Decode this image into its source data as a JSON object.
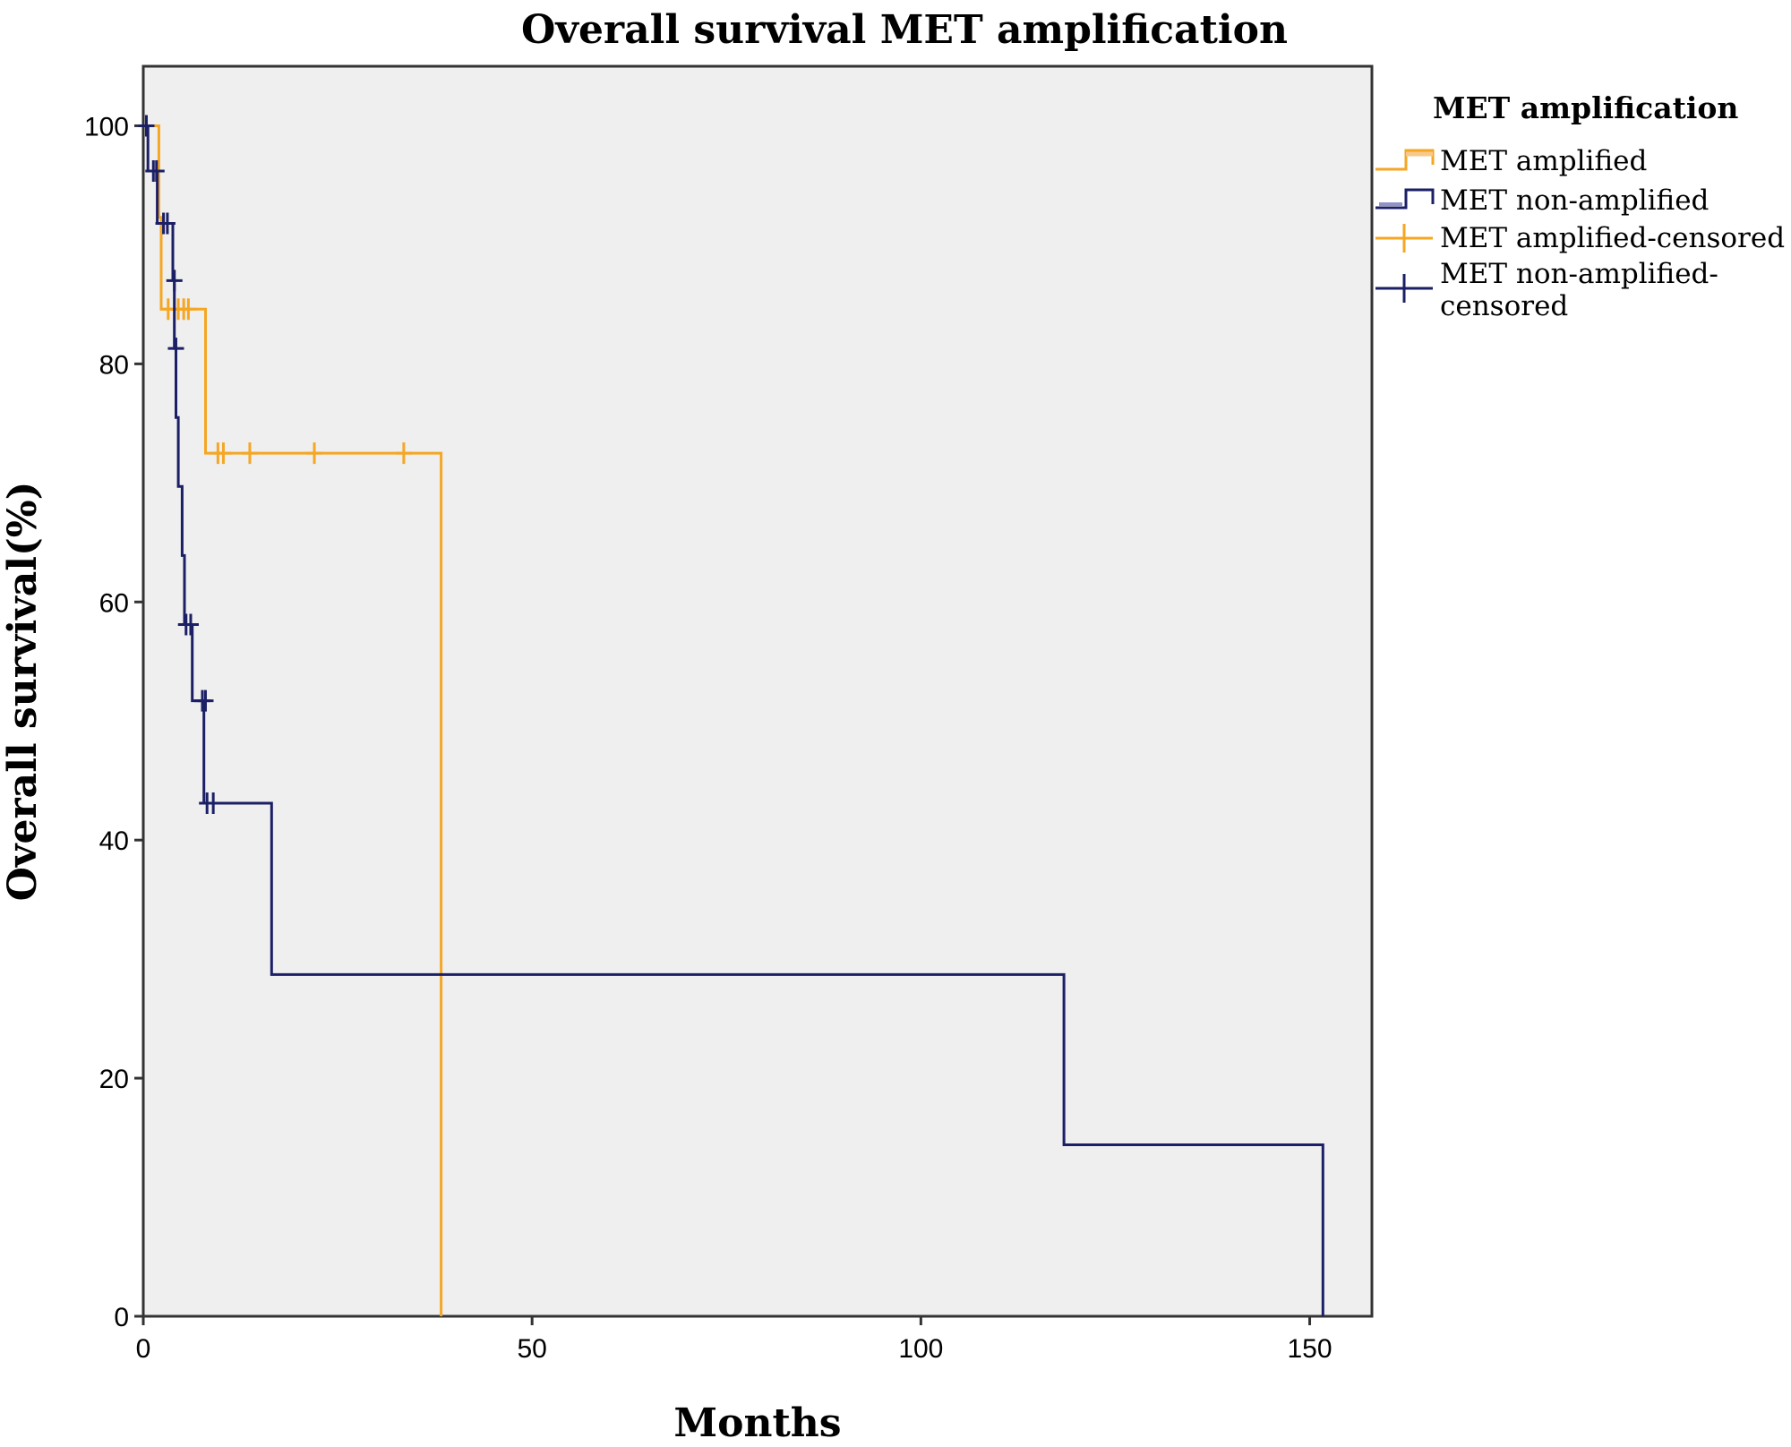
{
  "chart_data": {
    "type": "line",
    "subtype": "kaplan-meier-step",
    "title": "Overall survival MET amplification",
    "xlabel": "Months",
    "ylabel": "Overall survival(%)",
    "xlim": [
      0,
      158
    ],
    "ylim": [
      0,
      105
    ],
    "xticks": [
      0,
      50,
      100,
      150
    ],
    "yticks": [
      0,
      20,
      40,
      60,
      80,
      100
    ],
    "grid": false,
    "background": "#efefef",
    "legend": {
      "title": "MET amplification",
      "placement": "right",
      "entries": [
        "MET amplified",
        "MET non-amplified",
        "MET amplified-censored",
        "MET non-amplified-\ncensored"
      ]
    },
    "series": [
      {
        "name": "MET amplified",
        "color": "#f5a623",
        "steps": [
          [
            0,
            100
          ],
          [
            2,
            100
          ],
          [
            2,
            92.3
          ],
          [
            2.3,
            92.3
          ],
          [
            2.3,
            84.6
          ],
          [
            8,
            84.6
          ],
          [
            8,
            72.5
          ],
          [
            38.3,
            72.5
          ],
          [
            38.3,
            0
          ]
        ],
        "censored": [
          [
            3.2,
            84.6
          ],
          [
            4.5,
            84.6
          ],
          [
            5.2,
            84.6
          ],
          [
            5.8,
            84.6
          ],
          [
            9.6,
            72.5
          ],
          [
            10.3,
            72.5
          ],
          [
            13.7,
            72.5
          ],
          [
            22,
            72.5
          ],
          [
            33.5,
            72.5
          ]
        ]
      },
      {
        "name": "MET non-amplified",
        "color": "#1b1f66",
        "steps": [
          [
            0,
            100
          ],
          [
            0.6,
            100
          ],
          [
            0.6,
            96.2
          ],
          [
            1.8,
            96.2
          ],
          [
            1.8,
            91.8
          ],
          [
            3.8,
            91.8
          ],
          [
            3.8,
            87
          ],
          [
            4,
            87
          ],
          [
            4,
            81.3
          ],
          [
            4.2,
            81.3
          ],
          [
            4.2,
            75.5
          ],
          [
            4.5,
            75.5
          ],
          [
            4.5,
            69.7
          ],
          [
            5,
            69.7
          ],
          [
            5,
            63.9
          ],
          [
            5.3,
            63.9
          ],
          [
            5.3,
            58.1
          ],
          [
            6.3,
            58.1
          ],
          [
            6.3,
            51.7
          ],
          [
            7.8,
            51.7
          ],
          [
            7.8,
            43.1
          ],
          [
            16.5,
            43.1
          ],
          [
            16.5,
            28.7
          ],
          [
            118.4,
            28.7
          ],
          [
            118.4,
            14.4
          ],
          [
            151.7,
            14.4
          ],
          [
            151.7,
            0
          ]
        ],
        "censored": [
          [
            0.4,
            100
          ],
          [
            1.3,
            96.2
          ],
          [
            1.7,
            96.2
          ],
          [
            2.6,
            91.8
          ],
          [
            3.1,
            91.8
          ],
          [
            4,
            87
          ],
          [
            4.2,
            81.3
          ],
          [
            5.5,
            58.1
          ],
          [
            6.1,
            58.1
          ],
          [
            7.6,
            51.7
          ],
          [
            8,
            51.7
          ],
          [
            8.2,
            43.1
          ],
          [
            9,
            43.1
          ]
        ]
      }
    ]
  }
}
